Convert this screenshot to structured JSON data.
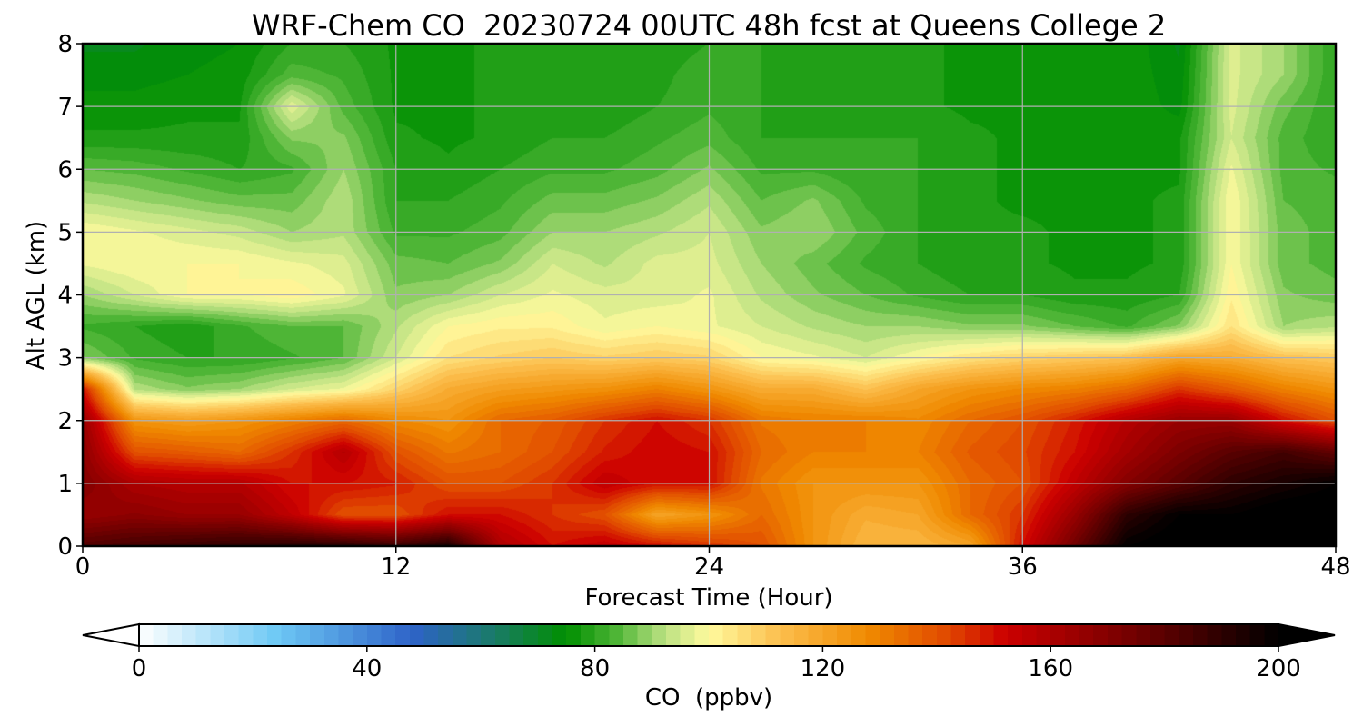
{
  "chart_data": {
    "type": "heatmap",
    "subtype": "filled-contour",
    "title": "WRF-Chem CO  20230724 00UTC 48h fcst at Queens College 2",
    "xlabel": "Forecast Time (Hour)",
    "ylabel": "Alt AGL (km)",
    "xlim": [
      0,
      48
    ],
    "ylim": [
      0,
      8
    ],
    "xticks": [
      0,
      12,
      24,
      36,
      48
    ],
    "yticks": [
      0,
      1,
      2,
      3,
      4,
      5,
      6,
      7,
      8
    ],
    "grid": true,
    "x": [
      0,
      2,
      4,
      6,
      8,
      10,
      12,
      14,
      16,
      18,
      20,
      22,
      24,
      26,
      28,
      30,
      32,
      34,
      36,
      38,
      40,
      42,
      44,
      46,
      48
    ],
    "y": [
      0,
      0.5,
      1,
      1.5,
      2,
      2.5,
      3,
      3.5,
      4,
      4.5,
      5,
      5.5,
      6,
      6.5,
      7,
      7.5,
      8
    ],
    "z_units": "ppbv",
    "z": [
      [
        182,
        185,
        188,
        190,
        192,
        192,
        188,
        195,
        160,
        150,
        155,
        150,
        145,
        140,
        125,
        115,
        115,
        120,
        150,
        175,
        200,
        205,
        210,
        210,
        210
      ],
      [
        165,
        168,
        165,
        165,
        155,
        140,
        140,
        150,
        150,
        145,
        140,
        120,
        125,
        135,
        125,
        118,
        120,
        135,
        145,
        165,
        190,
        200,
        200,
        205,
        205
      ],
      [
        170,
        160,
        158,
        158,
        150,
        150,
        148,
        140,
        140,
        145,
        155,
        150,
        150,
        132,
        125,
        125,
        125,
        135,
        140,
        155,
        170,
        180,
        190,
        195,
        200
      ],
      [
        168,
        140,
        138,
        135,
        145,
        158,
        140,
        132,
        135,
        140,
        148,
        152,
        150,
        135,
        130,
        130,
        130,
        138,
        142,
        150,
        162,
        172,
        180,
        185,
        178
      ],
      [
        165,
        125,
        122,
        125,
        130,
        135,
        128,
        125,
        135,
        138,
        145,
        150,
        145,
        132,
        130,
        130,
        128,
        135,
        140,
        148,
        158,
        165,
        165,
        150,
        140
      ],
      [
        150,
        92,
        88,
        90,
        95,
        98,
        108,
        118,
        122,
        124,
        126,
        130,
        125,
        118,
        118,
        112,
        120,
        125,
        128,
        130,
        135,
        145,
        138,
        130,
        125
      ],
      [
        88,
        82,
        80,
        80,
        82,
        85,
        95,
        105,
        108,
        110,
        108,
        110,
        108,
        100,
        98,
        95,
        100,
        105,
        108,
        110,
        112,
        120,
        118,
        112,
        110
      ],
      [
        82,
        80,
        78,
        82,
        85,
        85,
        92,
        100,
        102,
        102,
        98,
        100,
        98,
        95,
        92,
        90,
        90,
        88,
        88,
        85,
        82,
        88,
        105,
        90,
        92
      ],
      [
        90,
        95,
        100,
        100,
        102,
        98,
        88,
        90,
        95,
        98,
        96,
        96,
        98,
        92,
        88,
        85,
        82,
        80,
        80,
        78,
        78,
        80,
        102,
        88,
        86
      ],
      [
        98,
        100,
        100,
        100,
        98,
        96,
        86,
        85,
        88,
        95,
        92,
        96,
        96,
        90,
        86,
        82,
        80,
        78,
        78,
        77,
        77,
        78,
        100,
        86,
        84
      ],
      [
        100,
        98,
        96,
        94,
        90,
        92,
        82,
        82,
        84,
        90,
        90,
        92,
        95,
        88,
        90,
        84,
        80,
        78,
        78,
        77,
        77,
        78,
        100,
        86,
        84
      ],
      [
        92,
        90,
        88,
        86,
        86,
        92,
        80,
        80,
        82,
        86,
        86,
        88,
        92,
        85,
        88,
        82,
        80,
        78,
        77,
        77,
        77,
        78,
        100,
        85,
        84
      ],
      [
        85,
        84,
        82,
        80,
        82,
        90,
        80,
        78,
        80,
        82,
        82,
        84,
        88,
        82,
        82,
        80,
        80,
        78,
        77,
        77,
        77,
        77,
        98,
        84,
        82
      ],
      [
        78,
        78,
        78,
        78,
        88,
        88,
        78,
        77,
        78,
        80,
        80,
        82,
        84,
        80,
        80,
        80,
        80,
        78,
        77,
        77,
        77,
        77,
        95,
        84,
        80
      ],
      [
        76,
        76,
        77,
        77,
        97,
        84,
        77,
        77,
        78,
        78,
        78,
        80,
        82,
        80,
        79,
        80,
        78,
        77,
        77,
        77,
        77,
        74,
        96,
        86,
        80
      ],
      [
        74,
        74,
        75,
        76,
        84,
        82,
        77,
        77,
        78,
        78,
        78,
        79,
        82,
        80,
        79,
        80,
        78,
        77,
        77,
        77,
        77,
        73,
        96,
        90,
        80
      ],
      [
        72,
        72,
        74,
        75,
        80,
        80,
        77,
        77,
        78,
        78,
        78,
        78,
        80,
        80,
        78,
        80,
        78,
        77,
        77,
        77,
        77,
        72,
        96,
        90,
        80
      ]
    ],
    "colorbar": {
      "label": "CO  (ppbv)",
      "min": 0,
      "max": 200,
      "ticks": [
        0,
        40,
        80,
        120,
        160,
        200
      ],
      "extend": "both",
      "stops": [
        {
          "v": 0,
          "c": "#ffffff"
        },
        {
          "v": 24,
          "c": "#6ec9f5"
        },
        {
          "v": 48,
          "c": "#2e63c8"
        },
        {
          "v": 62,
          "c": "#1a7a6a"
        },
        {
          "v": 75,
          "c": "#008f00"
        },
        {
          "v": 84,
          "c": "#50b638"
        },
        {
          "v": 92,
          "c": "#b8e080"
        },
        {
          "v": 100,
          "c": "#fffa9e"
        },
        {
          "v": 112,
          "c": "#fcc050"
        },
        {
          "v": 128,
          "c": "#f08a00"
        },
        {
          "v": 142,
          "c": "#e04800"
        },
        {
          "v": 152,
          "c": "#cc0000"
        },
        {
          "v": 175,
          "c": "#700000"
        },
        {
          "v": 200,
          "c": "#000000"
        }
      ]
    }
  }
}
